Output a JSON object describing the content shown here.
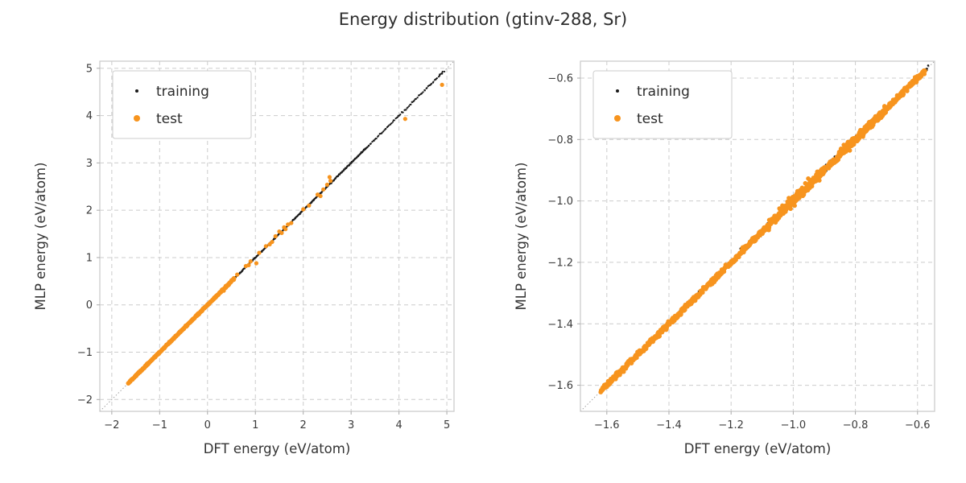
{
  "title": "Energy distribution (gtinv-288, Sr)",
  "colors": {
    "background": "#ffffff",
    "training": "#1a1a1a",
    "test": "#f7941e",
    "grid": "#cccccc",
    "spine": "#cccccc",
    "tick": "#aaaaaa",
    "text": "#333333",
    "tick_text": "#3a3a3a",
    "ref_line": "#999999",
    "legend_border": "#cccccc",
    "legend_text": "#2b2b2b"
  },
  "chart_data": [
    {
      "type": "scatter",
      "title": "",
      "xlabel": "DFT energy (eV/atom)",
      "ylabel": "MLP energy (eV/atom)",
      "xlim": [
        -2.25,
        5.15
      ],
      "ylim": [
        -2.25,
        5.15
      ],
      "xticks": [
        -2,
        -1,
        0,
        1,
        2,
        3,
        4,
        5
      ],
      "xtick_labels": [
        "−2",
        "−1",
        "0",
        "1",
        "2",
        "3",
        "4",
        "5"
      ],
      "yticks": [
        -2,
        -1,
        0,
        1,
        2,
        3,
        4,
        5
      ],
      "ytick_labels": [
        "−2",
        "−1",
        "0",
        "1",
        "2",
        "3",
        "4",
        "5"
      ],
      "grid": true,
      "reference_line": "y=x",
      "legend": {
        "position": "upper-left",
        "entries": [
          {
            "label": "training",
            "color": "#1a1a1a",
            "marker_radius": 2
          },
          {
            "label": "test",
            "color": "#f7941e",
            "marker_radius": 4
          }
        ]
      },
      "series": [
        {
          "name": "training",
          "color": "#1a1a1a",
          "marker_radius": 1.1,
          "seed": 101,
          "dense_segments": [
            {
              "from": -1.62,
              "to": 3.35,
              "count": 600,
              "jitter": 0.007
            },
            {
              "from": 3.35,
              "to": 4.93,
              "count": 80,
              "jitter": 0.009
            }
          ],
          "points": [
            [
              4.9,
              4.9
            ],
            [
              4.85,
              4.87
            ],
            [
              4.95,
              4.93
            ]
          ]
        },
        {
          "name": "test",
          "color": "#f7941e",
          "marker_radius": 2.6,
          "seed": 202,
          "dense_segments": [
            {
              "from": -1.66,
              "to": 0.56,
              "count": 500,
              "jitter": 0.008
            }
          ],
          "points": [
            [
              0.3,
              0.32
            ],
            [
              0.34,
              0.3
            ],
            [
              0.38,
              0.4
            ],
            [
              0.45,
              0.43
            ],
            [
              0.5,
              0.52
            ],
            [
              0.55,
              0.53
            ],
            [
              0.62,
              0.64
            ],
            [
              0.8,
              0.82
            ],
            [
              0.86,
              0.84
            ],
            [
              0.9,
              0.92
            ],
            [
              1.02,
              0.88
            ],
            [
              1.08,
              1.1
            ],
            [
              1.22,
              1.24
            ],
            [
              1.3,
              1.28
            ],
            [
              1.35,
              1.33
            ],
            [
              1.42,
              1.45
            ],
            [
              1.5,
              1.55
            ],
            [
              1.55,
              1.52
            ],
            [
              1.6,
              1.64
            ],
            [
              1.63,
              1.6
            ],
            [
              1.68,
              1.7
            ],
            [
              1.75,
              1.73
            ],
            [
              2.0,
              2.02
            ],
            [
              2.12,
              2.1
            ],
            [
              2.3,
              2.33
            ],
            [
              2.36,
              2.3
            ],
            [
              2.42,
              2.44
            ],
            [
              2.5,
              2.54
            ],
            [
              2.55,
              2.7
            ],
            [
              2.57,
              2.62
            ],
            [
              4.13,
              3.93
            ],
            [
              4.9,
              4.65
            ]
          ]
        }
      ]
    },
    {
      "type": "scatter",
      "title": "",
      "xlabel": "DFT energy (eV/atom)",
      "ylabel": "MLP energy (eV/atom)",
      "xlim": [
        -1.685,
        -0.545
      ],
      "ylim": [
        -1.685,
        -0.545
      ],
      "xticks": [
        -1.6,
        -1.4,
        -1.2,
        -1.0,
        -0.8,
        -0.6
      ],
      "xtick_labels": [
        "−1.6",
        "−1.4",
        "−1.2",
        "−1.0",
        "−0.8",
        "−0.6"
      ],
      "yticks": [
        -1.6,
        -1.4,
        -1.2,
        -1.0,
        -0.8,
        -0.6
      ],
      "ytick_labels": [
        "−1.6",
        "−1.4",
        "−1.2",
        "−1.0",
        "−0.8",
        "−0.6"
      ],
      "grid": true,
      "reference_line": "y=x",
      "legend": {
        "position": "upper-left",
        "entries": [
          {
            "label": "training",
            "color": "#1a1a1a",
            "marker_radius": 2
          },
          {
            "label": "test",
            "color": "#f7941e",
            "marker_radius": 4
          }
        ]
      },
      "series": [
        {
          "name": "training",
          "color": "#1a1a1a",
          "marker_radius": 1.3,
          "seed": 303,
          "dense_segments": [
            {
              "from": -1.4,
              "to": -0.95,
              "count": 70,
              "jitter": 0.005
            },
            {
              "from": -0.95,
              "to": -0.565,
              "count": 160,
              "jitter": 0.006
            }
          ],
          "points": [
            [
              -1.17,
              -1.155
            ],
            [
              -1.155,
              -1.15
            ],
            [
              -1.02,
              -1.005
            ],
            [
              -0.975,
              -0.97
            ],
            [
              -0.9,
              -0.893
            ],
            [
              -0.87,
              -0.868
            ],
            [
              -0.77,
              -0.762
            ],
            [
              -0.73,
              -0.724
            ],
            [
              -0.7,
              -0.695
            ],
            [
              -0.675,
              -0.67
            ],
            [
              -0.65,
              -0.645
            ],
            [
              -0.635,
              -0.628
            ],
            [
              -0.615,
              -0.61
            ],
            [
              -0.6,
              -0.593
            ],
            [
              -0.585,
              -0.578
            ]
          ]
        },
        {
          "name": "test",
          "color": "#f7941e",
          "marker_radius": 2.8,
          "seed": 404,
          "dense_segments": [
            {
              "from": -1.62,
              "to": -0.575,
              "count": 900,
              "jitter": 0.0045
            },
            {
              "from": -1.08,
              "to": -0.9,
              "count": 120,
              "jitter": 0.009
            },
            {
              "from": -0.86,
              "to": -0.7,
              "count": 140,
              "jitter": 0.007
            }
          ],
          "points": [
            [
              -1.615,
              -1.613
            ],
            [
              -0.578,
              -0.576
            ]
          ]
        }
      ]
    }
  ]
}
